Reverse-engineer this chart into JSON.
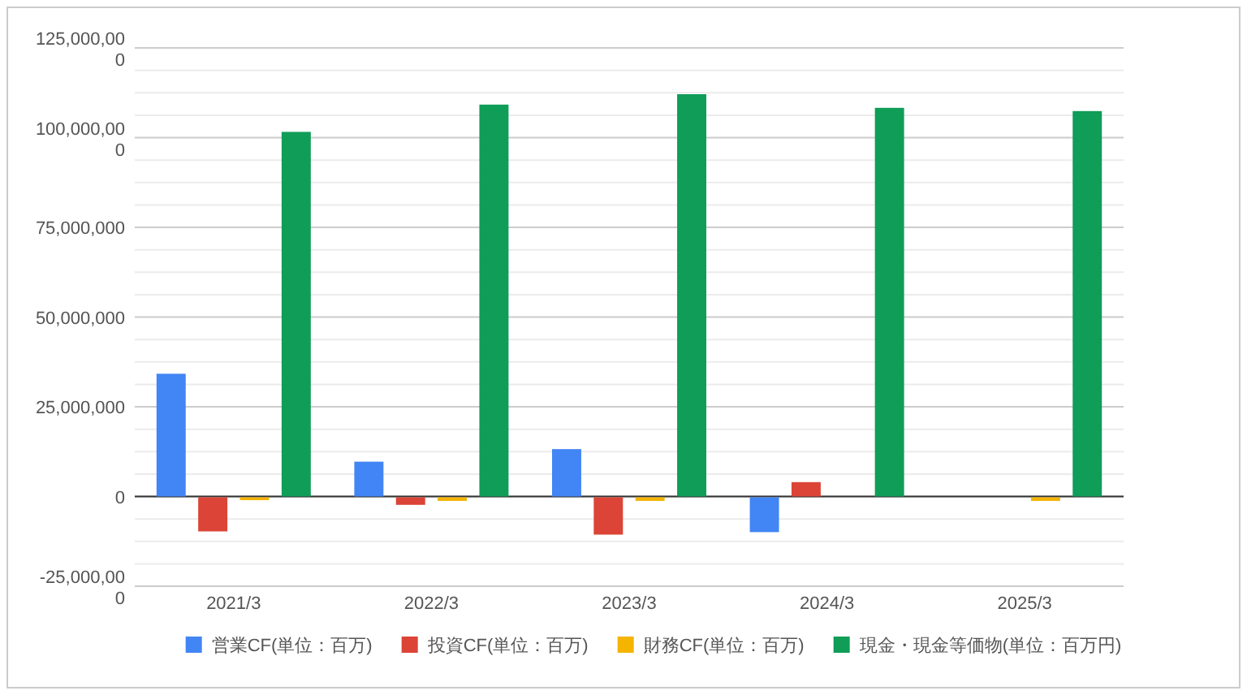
{
  "chart_data": {
    "type": "bar",
    "categories": [
      "2021/3",
      "2022/3",
      "2023/3",
      "2024/3",
      "2025/3"
    ],
    "series": [
      {
        "name": "営業CF(単位：百万)",
        "color": "#4285f4",
        "values": [
          34200000,
          9700000,
          13200000,
          -9700000,
          null
        ]
      },
      {
        "name": "投資CF(単位：百万)",
        "color": "#db4437",
        "values": [
          -9500000,
          -2100000,
          -10400000,
          4000000,
          null
        ]
      },
      {
        "name": "財務CF(単位：百万)",
        "color": "#f4b400",
        "values": [
          -800000,
          -1000000,
          -1000000,
          null,
          -1000000
        ]
      },
      {
        "name": "現金・現金等価物(単位：百万円)",
        "color": "#0f9d58",
        "values": [
          101600000,
          109200000,
          112100000,
          108300000,
          107400000
        ]
      }
    ],
    "ylim": [
      -25000000,
      125000000
    ],
    "yticks": [
      {
        "value": -25000000,
        "label": "-25,000,000"
      },
      {
        "value": -18750000,
        "label": null
      },
      {
        "value": -12500000,
        "label": null
      },
      {
        "value": -6250000,
        "label": null
      },
      0,
      {
        "value": 6250000,
        "label": null
      },
      {
        "value": 12500000,
        "label": null
      },
      {
        "value": 18750000,
        "label": null
      },
      {
        "value": 25000000,
        "label": "25,000,000"
      },
      {
        "value": 31250000,
        "label": null
      },
      {
        "value": 37500000,
        "label": null
      },
      {
        "value": 43750000,
        "label": null
      },
      {
        "value": 50000000,
        "label": "50,000,000"
      },
      {
        "value": 56250000,
        "label": null
      },
      {
        "value": 62500000,
        "label": null
      },
      {
        "value": 68750000,
        "label": null
      },
      {
        "value": 75000000,
        "label": "75,000,000"
      },
      {
        "value": 81250000,
        "label": null
      },
      {
        "value": 87500000,
        "label": null
      },
      {
        "value": 93750000,
        "label": null
      },
      {
        "value": 100000000,
        "label": "100,000,000"
      },
      {
        "value": 106250000,
        "label": null
      },
      {
        "value": 112500000,
        "label": null
      },
      {
        "value": 118750000,
        "label": null
      },
      {
        "value": 125000000,
        "label": "125,000,000"
      }
    ],
    "grid": "y",
    "legend": "bottom"
  }
}
